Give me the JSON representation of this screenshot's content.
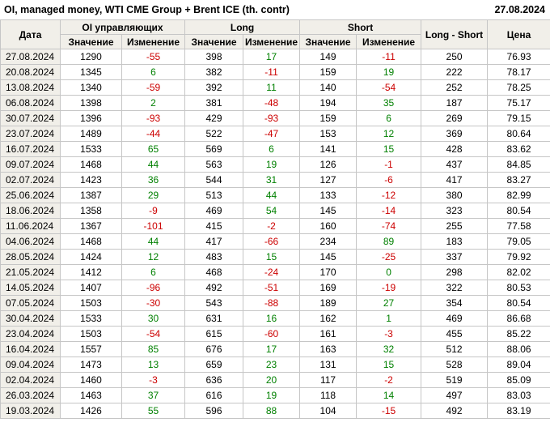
{
  "header": {
    "title": "OI, managed money, WTI CME Group + Brent ICE (th. contr)",
    "report_date": "27.08.2024"
  },
  "chart_data": {
    "type": "table",
    "title": "OI, managed money, WTI CME Group + Brent ICE (th. contr)",
    "report_date": "27.08.2024",
    "labels": {
      "date": "Дата",
      "oi_group": "OI управляющих",
      "long_group": "Long",
      "short_group": "Short",
      "long_short": "Long - Short",
      "price": "Цена",
      "value": "Значение",
      "change": "Изменение"
    },
    "columns_key": [
      "date",
      "oi_value",
      "oi_change",
      "long_value",
      "long_change",
      "short_value",
      "short_change",
      "long_short",
      "price"
    ],
    "rows": [
      [
        "27.08.2024",
        1290,
        -55,
        398,
        17,
        149,
        -11,
        250,
        "76.93"
      ],
      [
        "20.08.2024",
        1345,
        6,
        382,
        -11,
        159,
        19,
        222,
        "78.17"
      ],
      [
        "13.08.2024",
        1340,
        -59,
        392,
        11,
        140,
        -54,
        252,
        "78.25"
      ],
      [
        "06.08.2024",
        1398,
        2,
        381,
        -48,
        194,
        35,
        187,
        "75.17"
      ],
      [
        "30.07.2024",
        1396,
        -93,
        429,
        -93,
        159,
        6,
        269,
        "79.15"
      ],
      [
        "23.07.2024",
        1489,
        -44,
        522,
        -47,
        153,
        12,
        369,
        "80.64"
      ],
      [
        "16.07.2024",
        1533,
        65,
        569,
        6,
        141,
        15,
        428,
        "83.62"
      ],
      [
        "09.07.2024",
        1468,
        44,
        563,
        19,
        126,
        -1,
        437,
        "84.85"
      ],
      [
        "02.07.2024",
        1423,
        36,
        544,
        31,
        127,
        -6,
        417,
        "83.27"
      ],
      [
        "25.06.2024",
        1387,
        29,
        513,
        44,
        133,
        -12,
        380,
        "82.99"
      ],
      [
        "18.06.2024",
        1358,
        -9,
        469,
        54,
        145,
        -14,
        323,
        "80.54"
      ],
      [
        "11.06.2024",
        1367,
        -101,
        415,
        -2,
        160,
        -74,
        255,
        "77.58"
      ],
      [
        "04.06.2024",
        1468,
        44,
        417,
        -66,
        234,
        89,
        183,
        "79.05"
      ],
      [
        "28.05.2024",
        1424,
        12,
        483,
        15,
        145,
        -25,
        337,
        "79.92"
      ],
      [
        "21.05.2024",
        1412,
        6,
        468,
        -24,
        170,
        0,
        298,
        "82.02"
      ],
      [
        "14.05.2024",
        1407,
        -96,
        492,
        -51,
        169,
        -19,
        322,
        "80.53"
      ],
      [
        "07.05.2024",
        1503,
        -30,
        543,
        -88,
        189,
        27,
        354,
        "80.54"
      ],
      [
        "30.04.2024",
        1533,
        30,
        631,
        16,
        162,
        1,
        469,
        "86.68"
      ],
      [
        "23.04.2024",
        1503,
        -54,
        615,
        -60,
        161,
        -3,
        455,
        "85.22"
      ],
      [
        "16.04.2024",
        1557,
        85,
        676,
        17,
        163,
        32,
        512,
        "88.06"
      ],
      [
        "09.04.2024",
        1473,
        13,
        659,
        23,
        131,
        15,
        528,
        "89.04"
      ],
      [
        "02.04.2024",
        1460,
        -3,
        636,
        20,
        117,
        -2,
        519,
        "85.09"
      ],
      [
        "26.03.2024",
        1463,
        37,
        616,
        19,
        118,
        14,
        497,
        "83.03"
      ],
      [
        "19.03.2024",
        1426,
        55,
        596,
        88,
        104,
        -15,
        492,
        "83.19"
      ]
    ]
  },
  "colors": {
    "positive": "#008000",
    "negative": "#cc0000",
    "header_bg": "#f1efe9",
    "border": "#c6c6c6"
  }
}
